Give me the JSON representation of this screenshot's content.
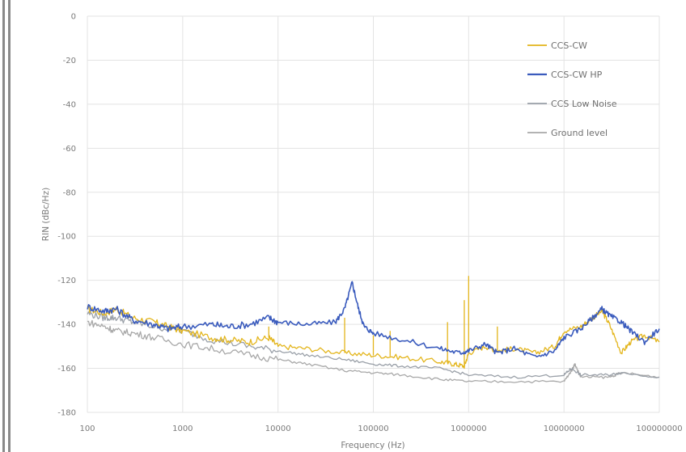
{
  "chart_data": {
    "type": "line",
    "title": "",
    "xlabel": "Frequency (Hz)",
    "ylabel": "RIN (dBc/Hz)",
    "xscale": "log",
    "xlim": [
      100,
      100000000
    ],
    "ylim": [
      -180,
      0
    ],
    "grid": "on",
    "legend_position": "top-right",
    "x_ticks": [
      "100",
      "1000",
      "10000",
      "100000",
      "1000000",
      "10000000",
      "100000000"
    ],
    "y_ticks": [
      "0",
      "-20",
      "-40",
      "-60",
      "-80",
      "-100",
      "-120",
      "-140",
      "-160",
      "-180"
    ],
    "series": [
      {
        "name": "CCS-CW",
        "color": "#e3b51b",
        "points": [
          [
            100,
            -133
          ],
          [
            150,
            -135
          ],
          [
            200,
            -133
          ],
          [
            300,
            -137
          ],
          [
            500,
            -139
          ],
          [
            700,
            -141
          ],
          [
            1000,
            -143
          ],
          [
            2000,
            -146
          ],
          [
            3000,
            -147
          ],
          [
            5000,
            -148
          ],
          [
            8000,
            -146
          ],
          [
            10000,
            -150
          ],
          [
            20000,
            -151
          ],
          [
            50000,
            -153
          ],
          [
            100000,
            -154
          ],
          [
            200000,
            -155
          ],
          [
            500000,
            -157
          ],
          [
            700000,
            -158
          ],
          [
            900000,
            -159
          ],
          [
            1000000,
            -153
          ],
          [
            1500000,
            -150
          ],
          [
            2000000,
            -152
          ],
          [
            3000000,
            -151
          ],
          [
            5000000,
            -153
          ],
          [
            8000000,
            -150
          ],
          [
            10000000,
            -143
          ],
          [
            15000000,
            -141
          ],
          [
            20000000,
            -137
          ],
          [
            25000000,
            -134
          ],
          [
            30000000,
            -140
          ],
          [
            40000000,
            -153
          ],
          [
            50000000,
            -148
          ],
          [
            70000000,
            -145
          ],
          [
            100000000,
            -148
          ]
        ],
        "spikes": [
          [
            8000,
            -141
          ],
          [
            50000,
            -137
          ],
          [
            100000,
            -145
          ],
          [
            150000,
            -143
          ],
          [
            600000,
            -139
          ],
          [
            900000,
            -129
          ],
          [
            1000000,
            -118
          ],
          [
            2000000,
            -141
          ]
        ]
      },
      {
        "name": "CCS-CW HP",
        "color": "#3a5bbd",
        "points": [
          [
            100,
            -132
          ],
          [
            150,
            -134
          ],
          [
            200,
            -133
          ],
          [
            300,
            -138
          ],
          [
            500,
            -140
          ],
          [
            700,
            -142
          ],
          [
            1000,
            -141
          ],
          [
            2000,
            -140
          ],
          [
            3000,
            -141
          ],
          [
            5000,
            -140
          ],
          [
            8000,
            -137
          ],
          [
            10000,
            -139
          ],
          [
            20000,
            -140
          ],
          [
            40000,
            -139
          ],
          [
            50000,
            -133
          ],
          [
            60000,
            -121
          ],
          [
            70000,
            -133
          ],
          [
            80000,
            -141
          ],
          [
            100000,
            -144
          ],
          [
            200000,
            -147
          ],
          [
            500000,
            -151
          ],
          [
            800000,
            -153
          ],
          [
            1000000,
            -152
          ],
          [
            1500000,
            -149
          ],
          [
            2000000,
            -153
          ],
          [
            3000000,
            -151
          ],
          [
            5000000,
            -155
          ],
          [
            8000000,
            -152
          ],
          [
            10000000,
            -146
          ],
          [
            15000000,
            -142
          ],
          [
            20000000,
            -137
          ],
          [
            25000000,
            -133
          ],
          [
            30000000,
            -136
          ],
          [
            40000000,
            -139
          ],
          [
            50000000,
            -143
          ],
          [
            70000000,
            -148
          ],
          [
            100000000,
            -142
          ]
        ],
        "spikes": []
      },
      {
        "name": "CCS Low Noise",
        "color": "#9aa0a8",
        "points": [
          [
            100,
            -135
          ],
          [
            150,
            -137
          ],
          [
            200,
            -137
          ],
          [
            300,
            -139
          ],
          [
            500,
            -141
          ],
          [
            1000,
            -143
          ],
          [
            2000,
            -147
          ],
          [
            5000,
            -150
          ],
          [
            10000,
            -152
          ],
          [
            20000,
            -154
          ],
          [
            50000,
            -156
          ],
          [
            100000,
            -158
          ],
          [
            200000,
            -159
          ],
          [
            500000,
            -160
          ],
          [
            1000000,
            -163
          ],
          [
            3000000,
            -164
          ],
          [
            10000000,
            -163
          ],
          [
            12000000,
            -160
          ],
          [
            15000000,
            -163
          ],
          [
            30000000,
            -163
          ],
          [
            40000000,
            -162
          ],
          [
            100000000,
            -164
          ]
        ],
        "spikes": []
      },
      {
        "name": "Ground level",
        "color": "#a8a8a8",
        "points": [
          [
            100,
            -139
          ],
          [
            150,
            -141
          ],
          [
            200,
            -143
          ],
          [
            300,
            -144
          ],
          [
            500,
            -146
          ],
          [
            1000,
            -149
          ],
          [
            2000,
            -151
          ],
          [
            5000,
            -154
          ],
          [
            10000,
            -156
          ],
          [
            20000,
            -158
          ],
          [
            50000,
            -161
          ],
          [
            100000,
            -162
          ],
          [
            200000,
            -163
          ],
          [
            500000,
            -165
          ],
          [
            1000000,
            -166
          ],
          [
            3000000,
            -166
          ],
          [
            10000000,
            -166
          ],
          [
            12000000,
            -161
          ],
          [
            13000000,
            -158
          ],
          [
            15000000,
            -164
          ],
          [
            30000000,
            -164
          ],
          [
            40000000,
            -162
          ],
          [
            100000000,
            -164
          ]
        ],
        "spikes": []
      }
    ]
  }
}
